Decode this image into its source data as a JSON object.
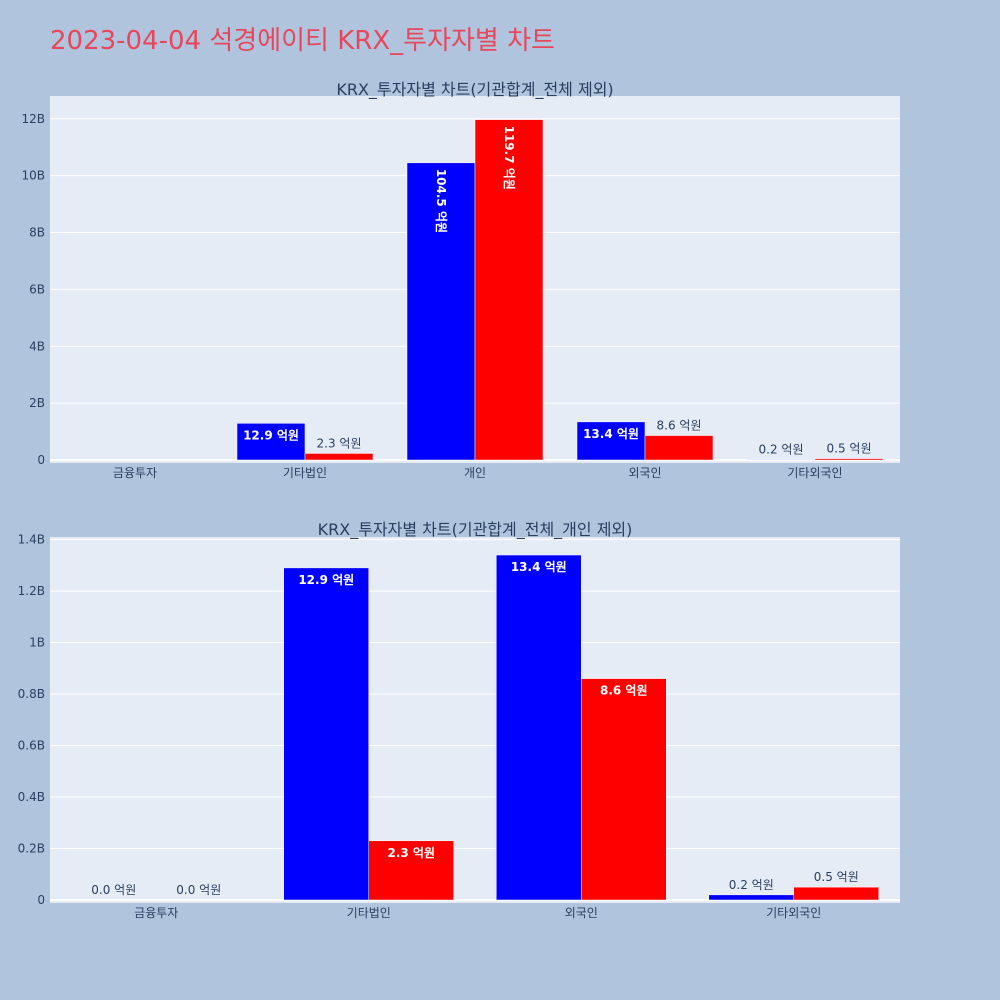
{
  "title": "2023-04-04 석경에이티 KRX_투자자별 차트",
  "colors": {
    "buy": "#0000ff",
    "sell": "#ff0000",
    "plot_bg": "#e5ecf6",
    "paper_bg": "#b0c4de",
    "title": "#e8465a"
  },
  "chart_data": [
    {
      "type": "bar",
      "title": "KRX_투자자별 차트(기관합계_전체 제외)",
      "categories": [
        "금융투자",
        "기타법인",
        "개인",
        "외국인",
        "기타외국인"
      ],
      "series": [
        {
          "color": "#0000ff",
          "values": [
            0,
            1290000000,
            10450000000,
            1340000000,
            20000000
          ],
          "labels": [
            "",
            "12.9 억원",
            "104.5 억원",
            "13.4 억원",
            "0.2 억원"
          ]
        },
        {
          "color": "#ff0000",
          "values": [
            0,
            230000000,
            11970000000,
            860000000,
            50000000
          ],
          "labels": [
            "",
            "2.3 억원",
            "119.7 억원",
            "8.6 억원",
            "0.5 억원"
          ]
        }
      ],
      "ylim": [
        0,
        12800000000
      ],
      "yticks": [
        0,
        2000000000,
        4000000000,
        6000000000,
        8000000000,
        10000000000,
        12000000000
      ],
      "ytick_labels": [
        "0",
        "2B",
        "4B",
        "6B",
        "8B",
        "10B",
        "12B"
      ],
      "grid": true
    },
    {
      "type": "bar",
      "title": "KRX_투자자별 차트(기관합계_전체_개인 제외)",
      "categories": [
        "금융투자",
        "기타법인",
        "외국인",
        "기타외국인"
      ],
      "series": [
        {
          "color": "#0000ff",
          "values": [
            0,
            1290000000,
            1340000000,
            20000000
          ],
          "labels": [
            "0.0 억원",
            "12.9 억원",
            "13.4 억원",
            "0.2 억원"
          ]
        },
        {
          "color": "#ff0000",
          "values": [
            0,
            230000000,
            860000000,
            50000000
          ],
          "labels": [
            "0.0 억원",
            "2.3 억원",
            "8.6 억원",
            "0.5 억원"
          ]
        }
      ],
      "ylim": [
        0,
        1410000000
      ],
      "yticks": [
        0,
        200000000,
        400000000,
        600000000,
        800000000,
        1000000000,
        1200000000,
        1400000000
      ],
      "ytick_labels": [
        "0",
        "0.2B",
        "0.4B",
        "0.6B",
        "0.8B",
        "1B",
        "1.2B",
        "1.4B"
      ],
      "grid": true
    }
  ]
}
